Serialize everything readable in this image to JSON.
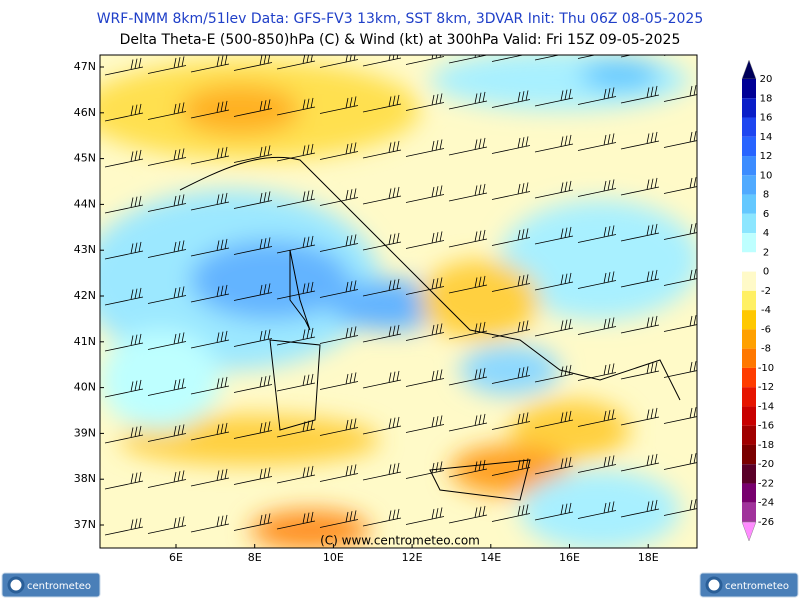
{
  "header": {
    "line1": "WRF-NMM 8km/51lev   Data: GFS-FV3 13km, SST 8km, 3DVAR   Init: Thu 06Z 08-05-2025",
    "line2": "Delta Theta-E (500-850)hPa (C) & Wind (kt) at 300hPa    Valid: Fri 15Z 09-05-2025"
  },
  "map": {
    "lat_labels": [
      "47N",
      "46N",
      "45N",
      "44N",
      "43N",
      "42N",
      "41N",
      "40N",
      "39N",
      "38N",
      "37N"
    ],
    "lon_labels": [
      "6E",
      "8E",
      "10E",
      "12E",
      "14E",
      "16E",
      "18E"
    ],
    "watermark": "(C) www.centrometeo.com"
  },
  "colorbar": {
    "labels": [
      "20",
      "18",
      "16",
      "14",
      "12",
      "10",
      "8",
      "6",
      "4",
      "2",
      "0",
      "-2",
      "-4",
      "-6",
      "-8",
      "-10",
      "-12",
      "-14",
      "-16",
      "-18",
      "-20",
      "-22",
      "-24",
      "-26"
    ],
    "colors": [
      "#00005a",
      "#000096",
      "#0a1ec8",
      "#1e46f0",
      "#2864ff",
      "#3c8cff",
      "#50aaff",
      "#64c8ff",
      "#8ce6ff",
      "#beffff",
      "#ffffff",
      "#fffac8",
      "#fff064",
      "#ffc800",
      "#ffa000",
      "#ff7800",
      "#ff3c00",
      "#e61400",
      "#c80000",
      "#a00000",
      "#7a0000",
      "#5a0028",
      "#78006e",
      "#a0329b",
      "#ff8cff"
    ]
  },
  "logos": {
    "left": "centrometeo",
    "right": "centrometeo"
  }
}
